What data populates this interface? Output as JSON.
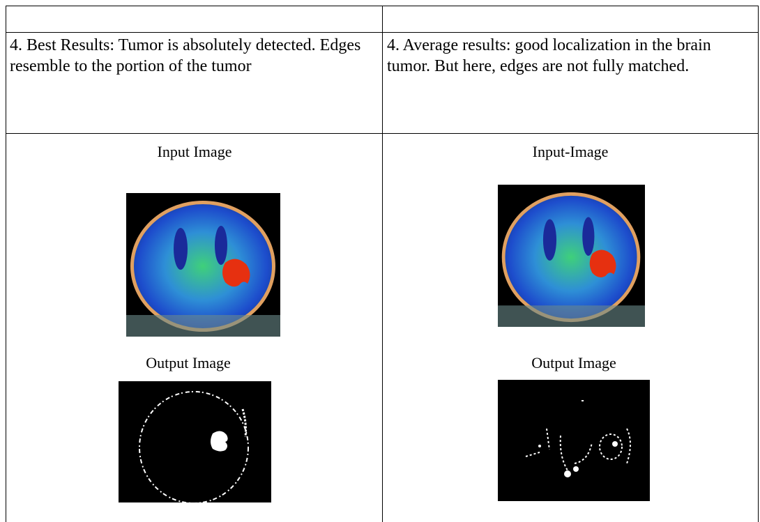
{
  "table": {
    "description_row": [
      "4. Best Results: Tumor is absolutely detected. Edges resemble to the portion of the tumor",
      "4. Average results: good localization in the brain tumor. But here, edges are not fully matched."
    ],
    "image_row": [
      {
        "input_label": "Input Image",
        "output_label": "Output Image"
      },
      {
        "input_label": "Input-Image",
        "output_label": "Output Image"
      }
    ]
  }
}
